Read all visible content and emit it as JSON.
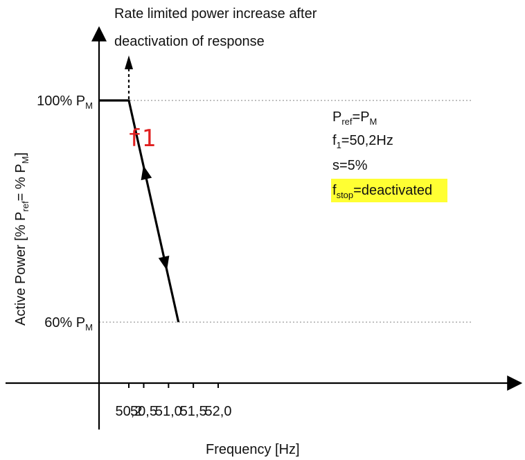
{
  "annotation_top": {
    "line1": "Rate limited power increase after",
    "line2": "deactivation of response"
  },
  "marker_label": "f1",
  "params": [
    {
      "main": "P",
      "sub": "ref",
      "rest": "=P",
      "sub2": "M"
    },
    {
      "main": "f",
      "sub": "1",
      "rest": "=50,2Hz"
    },
    {
      "main": "s=5%"
    },
    {
      "main": "f",
      "sub": "stop",
      "rest": "=deactivated",
      "highlight": true
    }
  ],
  "colors": {
    "line": "#000000",
    "gridline": "#aaaaaa",
    "marker": "#e02020",
    "highlight": "#ffff33"
  },
  "chart_data": {
    "type": "line",
    "xlabel": "Frequency [Hz]",
    "ylabel": {
      "main": "Active Power [% P",
      "sub": "ref",
      "mid": "= % P",
      "sub2": "M",
      "end": "]"
    },
    "x_ticks": [
      {
        "value": 50.2,
        "label": "50,2"
      },
      {
        "value": 50.5,
        "label": "50,5"
      },
      {
        "value": 51.0,
        "label": "51,0"
      },
      {
        "value": 51.5,
        "label": "51,5"
      },
      {
        "value": 52.0,
        "label": "52,0"
      }
    ],
    "y_ticks": [
      {
        "value": 100,
        "label": "100% P",
        "sub": "M"
      },
      {
        "value": 60,
        "label": "60% P",
        "sub": "M"
      }
    ],
    "xlim": [
      49.6,
      52.6
    ],
    "ylim": [
      49,
      110
    ],
    "series": [
      {
        "x": [
          49.6,
          50.2,
          51.2
        ],
        "y": [
          100,
          100,
          60
        ]
      }
    ],
    "arrows_on_slope": [
      {
        "x": 50.53,
        "y": 86.8,
        "direction": "up"
      },
      {
        "x": 50.93,
        "y": 70.8,
        "direction": "down"
      }
    ],
    "dashed_arrow_up_at_x": 50.2,
    "gridlines_y": [
      100,
      60
    ],
    "grid": false
  }
}
